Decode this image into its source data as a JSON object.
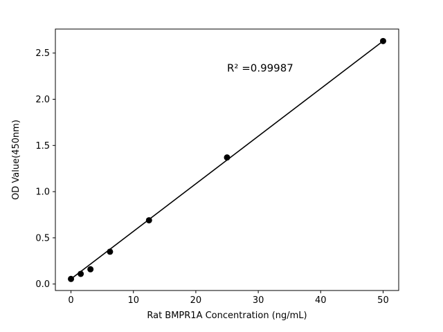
{
  "figure": {
    "background": "#ffffff"
  },
  "chart_data": {
    "type": "scatter",
    "title": "",
    "xlabel": "Rat BMPR1A Concentration (ng/mL)",
    "ylabel": "OD Value(450nm)",
    "annotation": {
      "text": "R² =0.99987",
      "x": 25,
      "y": 2.3
    },
    "x": [
      0,
      1.56,
      3.12,
      6.25,
      12.5,
      25,
      50
    ],
    "y": [
      0.055,
      0.11,
      0.16,
      0.35,
      0.69,
      1.37,
      2.63
    ],
    "fit_line": {
      "x0": 0,
      "y0": 0.055,
      "x1": 50,
      "y1": 2.63
    },
    "xticks": [
      0,
      10,
      20,
      30,
      40,
      50
    ],
    "yticks": [
      0.0,
      0.5,
      1.0,
      1.5,
      2.0,
      2.5
    ],
    "xlim": [
      -2.5,
      52.5
    ],
    "ylim": [
      -0.07,
      2.76
    ],
    "grid": false,
    "legend": null,
    "marker_color": "#000000",
    "line_color": "#000000",
    "spine_color": "#000000"
  }
}
